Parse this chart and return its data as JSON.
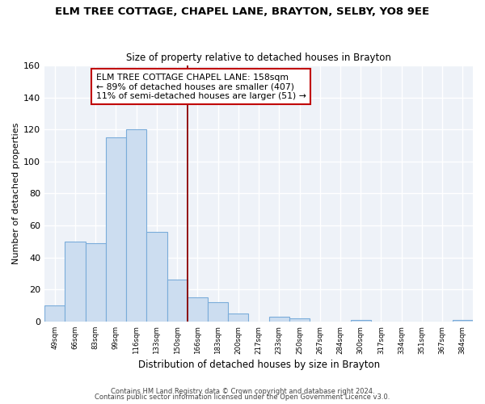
{
  "title": "ELM TREE COTTAGE, CHAPEL LANE, BRAYTON, SELBY, YO8 9EE",
  "subtitle": "Size of property relative to detached houses in Brayton",
  "xlabel": "Distribution of detached houses by size in Brayton",
  "ylabel": "Number of detached properties",
  "bar_labels": [
    "49sqm",
    "66sqm",
    "83sqm",
    "99sqm",
    "116sqm",
    "133sqm",
    "150sqm",
    "166sqm",
    "183sqm",
    "200sqm",
    "217sqm",
    "233sqm",
    "250sqm",
    "267sqm",
    "284sqm",
    "300sqm",
    "317sqm",
    "334sqm",
    "351sqm",
    "367sqm",
    "384sqm"
  ],
  "bar_values": [
    10,
    50,
    49,
    115,
    120,
    56,
    26,
    15,
    12,
    5,
    0,
    3,
    2,
    0,
    0,
    1,
    0,
    0,
    0,
    0,
    1
  ],
  "bar_color": "#ccddf0",
  "bar_edge_color": "#7aacda",
  "vline_color": "#8b0000",
  "annotation_text": "ELM TREE COTTAGE CHAPEL LANE: 158sqm\n← 89% of detached houses are smaller (407)\n11% of semi-detached houses are larger (51) →",
  "annotation_box_color": "#ffffff",
  "annotation_box_edge": "#c00000",
  "ylim": [
    0,
    160
  ],
  "yticks": [
    0,
    20,
    40,
    60,
    80,
    100,
    120,
    140,
    160
  ],
  "footer_line1": "Contains HM Land Registry data © Crown copyright and database right 2024.",
  "footer_line2": "Contains public sector information licensed under the Open Government Licence v3.0.",
  "bg_color": "#ffffff",
  "plot_bg_color": "#eef2f8",
  "grid_color": "#ffffff"
}
